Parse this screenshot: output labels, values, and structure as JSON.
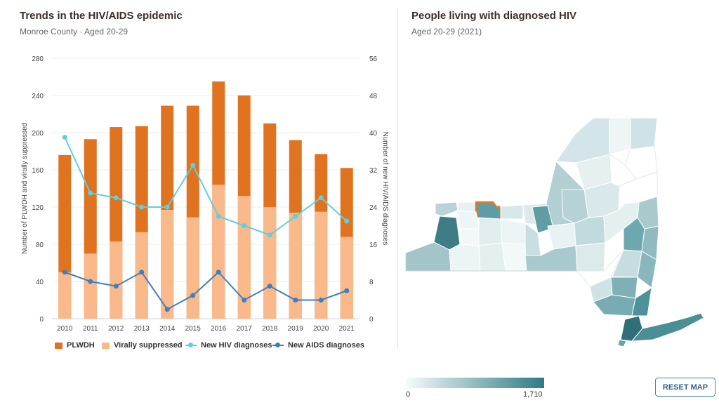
{
  "left": {
    "title": "Trends in the HIV/AIDS epidemic",
    "subtitle": "Monroe County · Aged 20-29"
  },
  "right": {
    "title": "People living with diagnosed HIV",
    "subtitle": "Aged 20-29 (2021)",
    "colorbar": {
      "min": "0",
      "max": "1,710",
      "colors": [
        "#f7fbfb",
        "#2e7b85"
      ]
    },
    "reset_label": "RESET MAP",
    "highlight_color": "#e07a22"
  },
  "chart_data": {
    "type": "bar",
    "categories": [
      "2010",
      "2011",
      "2012",
      "2013",
      "2014",
      "2015",
      "2016",
      "2017",
      "2018",
      "2019",
      "2020",
      "2021"
    ],
    "series": [
      {
        "name": "PLWDH",
        "type": "bar",
        "axis": "left",
        "color": "#e07320",
        "values": [
          176,
          193,
          206,
          207,
          229,
          229,
          255,
          240,
          210,
          192,
          177,
          162
        ]
      },
      {
        "name": "Virally suppressed",
        "type": "bar",
        "axis": "left",
        "color": "#f9b98b",
        "values": [
          50,
          70,
          83,
          93,
          117,
          109,
          144,
          132,
          120,
          114,
          115,
          88
        ]
      },
      {
        "name": "New HIV diagnoses",
        "type": "line",
        "axis": "right",
        "color": "#5ecfe0",
        "values": [
          39,
          27,
          26,
          24,
          24,
          33,
          22,
          20,
          18,
          22,
          26,
          21
        ]
      },
      {
        "name": "New AIDS diagnoses",
        "type": "line",
        "axis": "right",
        "color": "#3f7fbf",
        "values": [
          10,
          8,
          7,
          10,
          2,
          5,
          10,
          4,
          7,
          4,
          4,
          6
        ]
      }
    ],
    "ylabel": "Number of PLWDH and virally suppressed",
    "y2label": "Number of new HIV/AIDS diagnoses",
    "ylim": [
      0,
      280
    ],
    "y2lim": [
      0,
      56
    ],
    "yticks": [
      "0",
      "40",
      "80",
      "120",
      "160",
      "200",
      "240",
      "280"
    ],
    "y2ticks": [
      "0",
      "8",
      "16",
      "24",
      "32",
      "40",
      "48",
      "56"
    ],
    "grid": true,
    "legend_position": "bottom"
  },
  "map_data": {
    "type": "choropleth",
    "region": "New York State counties",
    "highlighted": "Monroe"
  }
}
